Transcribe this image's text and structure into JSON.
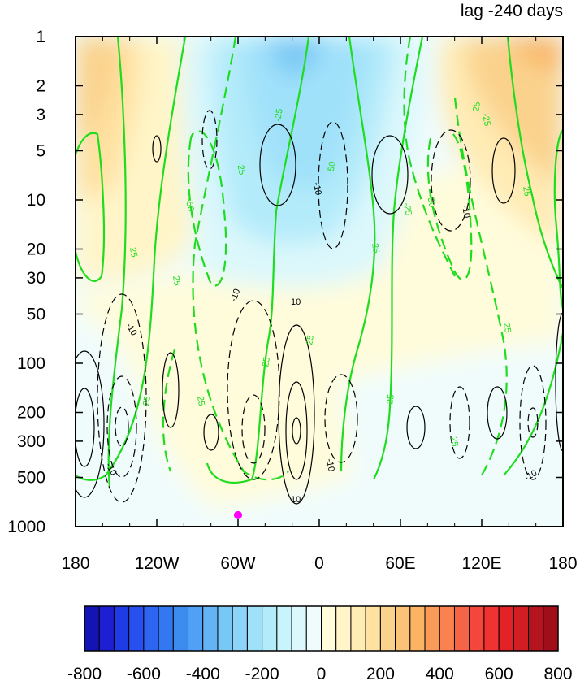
{
  "chart_data": {
    "type": "heatmap",
    "title": "lag -240 days",
    "xlabel": "",
    "ylabel": "",
    "x_ticks": [
      "180",
      "120W",
      "60W",
      "0",
      "60E",
      "120E",
      "180"
    ],
    "x_tick_lon": [
      -180,
      -120,
      -60,
      0,
      60,
      120,
      180
    ],
    "y_ticks": [
      "1",
      "2",
      "3",
      "5",
      "10",
      "20",
      "30",
      "50",
      "100",
      "200",
      "300",
      "500",
      "1000"
    ],
    "y_tick_values": [
      1,
      2,
      3,
      5,
      10,
      20,
      30,
      50,
      100,
      200,
      300,
      500,
      1000
    ],
    "xlim": [
      -180,
      180
    ],
    "ylim": [
      1000,
      1
    ],
    "y_scale": "log",
    "colorbar": {
      "levels": [
        -800,
        -750,
        -700,
        -650,
        -600,
        -550,
        -500,
        -450,
        -400,
        -350,
        -300,
        -250,
        -200,
        -150,
        -100,
        -50,
        0,
        50,
        100,
        150,
        200,
        250,
        300,
        350,
        400,
        450,
        500,
        550,
        600,
        650,
        700,
        750,
        800
      ],
      "labels": [
        "-800",
        "-600",
        "-400",
        "-200",
        "0",
        "200",
        "400",
        "600",
        "800"
      ],
      "label_values": [
        -800,
        -600,
        -400,
        -200,
        0,
        200,
        400,
        600,
        800
      ],
      "colors": [
        "#1414b4",
        "#1e1ed2",
        "#1e3ce6",
        "#2850f0",
        "#2d64f0",
        "#3278f0",
        "#3c8cf0",
        "#50a0f5",
        "#64b4f5",
        "#78c8f5",
        "#8cd4f8",
        "#a0e1fa",
        "#b4ebfa",
        "#c8f5fc",
        "#dcf8fc",
        "#f0fcfc",
        "#fffcdc",
        "#fff5c8",
        "#ffebb4",
        "#ffe1a0",
        "#fad28c",
        "#fac378",
        "#fab464",
        "#fa9b5a",
        "#fa8250",
        "#f56446",
        "#f5463c",
        "#f03232",
        "#e12328",
        "#d21e23",
        "#b4141e",
        "#a00f19"
      ]
    },
    "shading_regions": [
      {
        "anomaly": 200,
        "lon": -172,
        "p": 20
      },
      {
        "anomaly": 250,
        "lon": -165,
        "p": 2
      },
      {
        "anomaly": -150,
        "lon": -15,
        "p": 5
      },
      {
        "anomaly": -300,
        "lon": -10,
        "p": 1.5
      },
      {
        "anomaly": 250,
        "lon": 150,
        "p": 2
      },
      {
        "anomaly": 50,
        "lon": -100,
        "p": 100
      },
      {
        "anomaly": -50,
        "lon": 150,
        "p": 200
      },
      {
        "anomaly": -50,
        "lon": -165,
        "p": 300
      }
    ],
    "green_contour_labels": [
      "25",
      "25",
      "25",
      "25",
      "25",
      "25",
      "25",
      "25",
      "25",
      "25",
      "25",
      "25",
      "-25",
      "-25",
      "-25",
      "-25",
      "-50",
      "-50",
      "-50"
    ],
    "black_contour_labels": [
      "10",
      "10",
      "-10",
      "-10",
      "-10",
      "-10",
      "-10",
      "-10",
      "-10"
    ],
    "marker": {
      "lon": -60,
      "p": 850,
      "color": "#ff00ff"
    }
  }
}
